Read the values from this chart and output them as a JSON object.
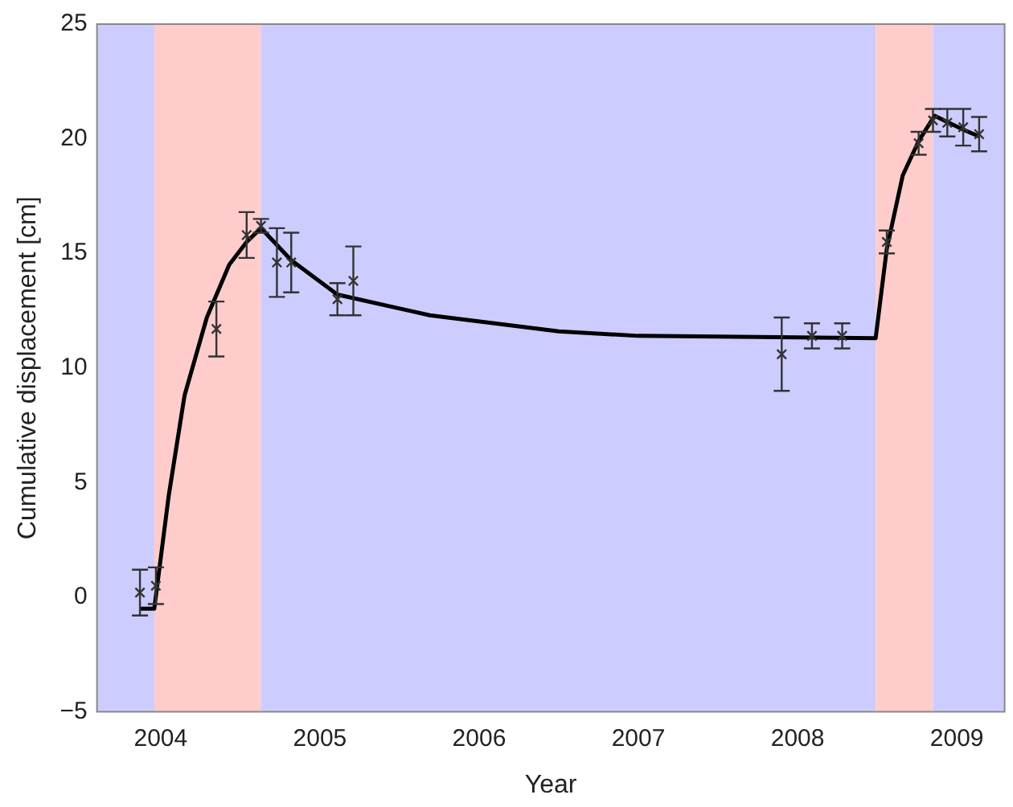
{
  "chart_data": {
    "type": "scatter",
    "xlabel": "Year",
    "ylabel": "Cumulative displacement [cm]",
    "xlim": [
      2003.6,
      2009.3
    ],
    "xticks": [
      2004,
      2005,
      2006,
      2007,
      2008,
      2009
    ],
    "ylim": [
      -5,
      25
    ],
    "yticks": [
      -5,
      0,
      5,
      10,
      15,
      20,
      25
    ],
    "grid": false,
    "legend": false,
    "bands": [
      {
        "axis": "x",
        "from": 2003.6,
        "to": 2003.96,
        "color": "#ccccff"
      },
      {
        "axis": "x",
        "from": 2003.96,
        "to": 2004.63,
        "color": "#ffcccc"
      },
      {
        "axis": "x",
        "from": 2004.63,
        "to": 2008.49,
        "color": "#ccccff"
      },
      {
        "axis": "x",
        "from": 2008.49,
        "to": 2008.85,
        "color": "#ffcccc"
      },
      {
        "axis": "x",
        "from": 2008.85,
        "to": 2009.3,
        "color": "#ccccff"
      }
    ],
    "series": [
      {
        "color": "#333333",
        "marker": "cross",
        "x": [
          2003.87,
          2003.97,
          2004.35,
          2004.54,
          2004.63,
          2004.73,
          2004.82,
          2005.11,
          2005.21,
          2007.9,
          2008.09,
          2008.28,
          2008.56,
          2008.76,
          2008.85,
          2008.94,
          2009.04,
          2009.14
        ],
        "values": [
          0.2,
          0.5,
          11.7,
          15.8,
          16.2,
          14.6,
          14.6,
          13.0,
          13.8,
          10.6,
          11.4,
          11.4,
          15.5,
          19.8,
          20.8,
          20.7,
          20.5,
          20.2
        ],
        "errors": [
          1,
          0.8,
          1.2,
          1,
          0.3,
          1.5,
          1.3,
          0.7,
          1.5,
          1.6,
          0.55,
          0.55,
          0.5,
          0.5,
          0.5,
          0.6,
          0.8,
          0.75
        ]
      },
      {
        "type": "line",
        "color": "#000000",
        "marker": "none",
        "line_style": "solid",
        "x": [
          2003.87,
          2003.96,
          2004.05,
          2004.15,
          2004.29,
          2004.43,
          2004.54,
          2004.63,
          2004.82,
          2005.11,
          2005.69,
          2006.5,
          2007,
          2008.49,
          2008.56,
          2008.66,
          2008.76,
          2008.86,
          2008.95,
          2009.04,
          2009.14
        ],
        "values": [
          -0.5,
          -0.5,
          4.4,
          8.8,
          12.2,
          14.5,
          15.5,
          16.1,
          14.7,
          13.2,
          12.3,
          11.6,
          11.4,
          11.3,
          15.2,
          18.4,
          19.9,
          21.0,
          20.7,
          20.4,
          20.1
        ]
      }
    ]
  }
}
